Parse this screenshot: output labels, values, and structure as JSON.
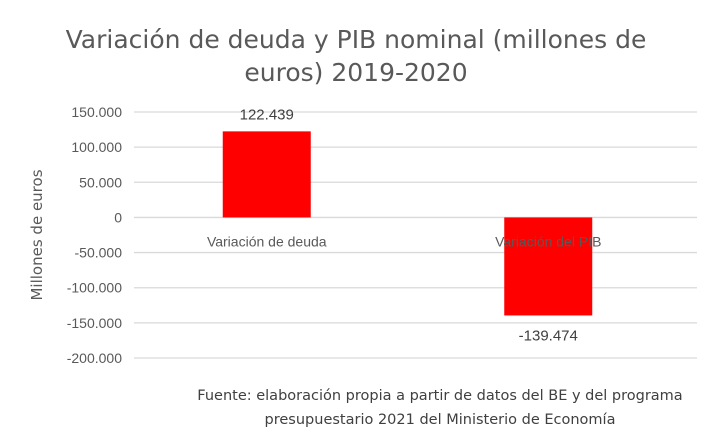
{
  "chart_data": {
    "type": "bar",
    "title_lines": [
      "Variación de deuda y PIB nominal (millones de",
      "euros) 2019-2020"
    ],
    "categories": [
      "Variación de deuda",
      "Variación del PIB"
    ],
    "values": [
      122439,
      -139474
    ],
    "data_labels": [
      "122.439",
      "-139.474"
    ],
    "xlabel": "",
    "ylabel": "Millones de euros",
    "ylim": [
      -200000,
      150000
    ],
    "yticks": [
      150000,
      100000,
      50000,
      0,
      -50000,
      -100000,
      -150000,
      -200000
    ],
    "ytick_labels": [
      "150.000",
      "100.000",
      "50.000",
      "0",
      "-50.000",
      "-100.000",
      "-150.000",
      "-200.000"
    ],
    "grid": true,
    "bar_color": "#ff0000",
    "grid_color": "#d9d9d9"
  },
  "source_lines": [
    "Fuente: elaboración propia a partir de datos del BE y del programa",
    "presupuestario 2021 del Ministerio de Economía"
  ]
}
